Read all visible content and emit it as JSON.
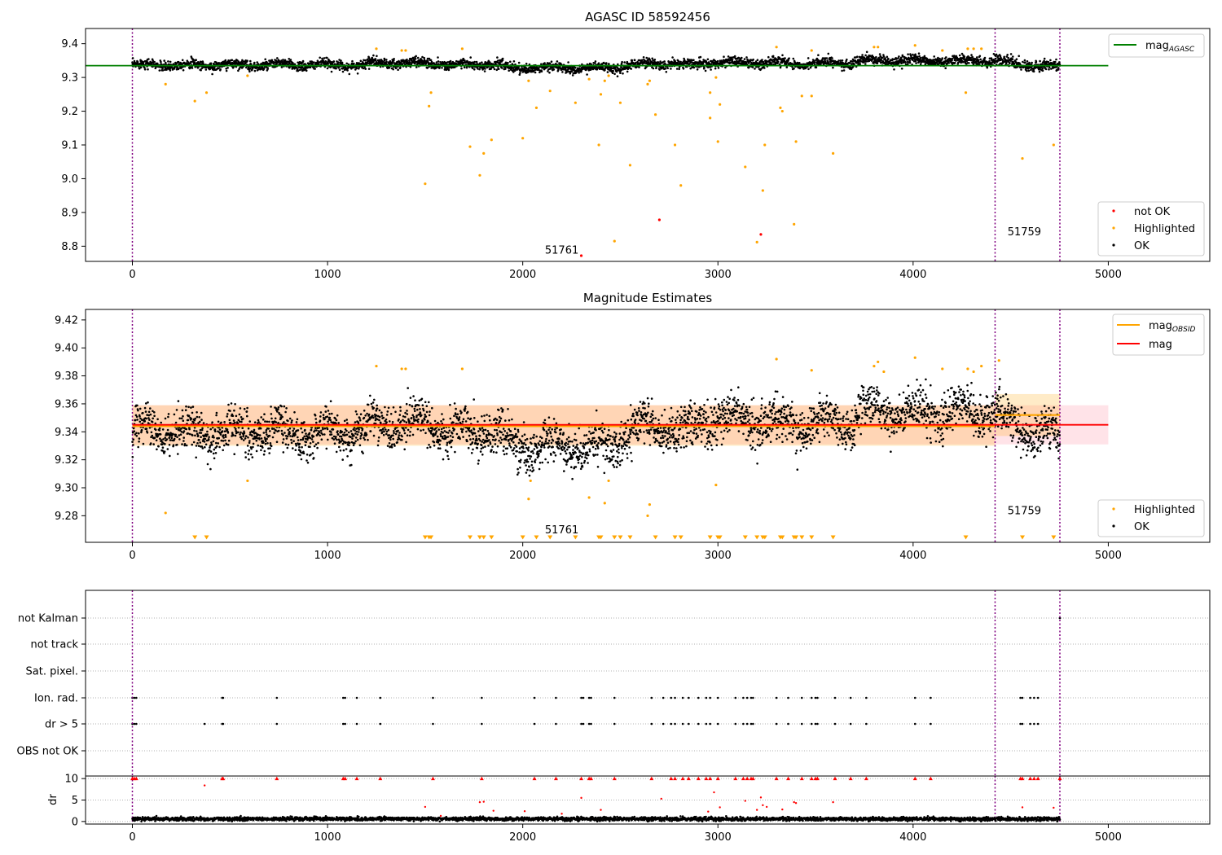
{
  "chart_data": [
    {
      "type": "scatter",
      "title": "AGASC ID 58592456",
      "xlim": [
        -240,
        5520
      ],
      "ylim": [
        8.755,
        9.445
      ],
      "xticks": [
        0,
        1000,
        2000,
        3000,
        4000,
        5000
      ],
      "yticks": [
        8.8,
        8.9,
        9.0,
        9.1,
        9.2,
        9.3,
        9.4
      ],
      "grid": false,
      "vlines": [
        0,
        4420,
        4752
      ],
      "line": {
        "name": "mag_AGASC",
        "x": [
          -240,
          5000
        ],
        "y": [
          9.335,
          9.335
        ],
        "color": "#008000"
      },
      "obsid_labels": [
        {
          "text": "51761",
          "x": 2200,
          "y": 8.778
        },
        {
          "text": "51759",
          "x": 4570,
          "y": 8.832
        }
      ],
      "band": {
        "center": 9.34,
        "amplitude": 0.012,
        "min_x": 0,
        "max_x": 4752
      },
      "highlighted": [
        [
          170,
          9.28
        ],
        [
          320,
          9.23
        ],
        [
          380,
          9.255
        ],
        [
          590,
          9.305
        ],
        [
          1250,
          9.385
        ],
        [
          1380,
          9.38
        ],
        [
          1400,
          9.38
        ],
        [
          1500,
          8.985
        ],
        [
          1520,
          9.215
        ],
        [
          1530,
          9.255
        ],
        [
          1690,
          9.385
        ],
        [
          1730,
          9.095
        ],
        [
          1780,
          9.01
        ],
        [
          1800,
          9.075
        ],
        [
          1840,
          9.115
        ],
        [
          2000,
          9.12
        ],
        [
          2030,
          9.29
        ],
        [
          2070,
          9.21
        ],
        [
          2140,
          9.26
        ],
        [
          2270,
          9.225
        ],
        [
          2340,
          9.295
        ],
        [
          2390,
          9.1
        ],
        [
          2400,
          9.25
        ],
        [
          2420,
          9.29
        ],
        [
          2440,
          9.305
        ],
        [
          2470,
          8.815
        ],
        [
          2500,
          9.225
        ],
        [
          2550,
          9.04
        ],
        [
          2640,
          9.28
        ],
        [
          2650,
          9.29
        ],
        [
          2680,
          9.19
        ],
        [
          2780,
          9.1
        ],
        [
          2810,
          8.98
        ],
        [
          2960,
          9.255
        ],
        [
          2960,
          9.18
        ],
        [
          2990,
          9.3
        ],
        [
          3000,
          9.11
        ],
        [
          3010,
          9.22
        ],
        [
          3140,
          9.035
        ],
        [
          3200,
          8.812
        ],
        [
          3230,
          8.965
        ],
        [
          3240,
          9.1
        ],
        [
          3300,
          9.39
        ],
        [
          3320,
          9.21
        ],
        [
          3330,
          9.2
        ],
        [
          3390,
          8.865
        ],
        [
          3400,
          9.11
        ],
        [
          3430,
          9.245
        ],
        [
          3480,
          9.245
        ],
        [
          3480,
          9.38
        ],
        [
          3590,
          9.075
        ],
        [
          3800,
          9.39
        ],
        [
          3820,
          9.39
        ],
        [
          4010,
          9.395
        ],
        [
          4150,
          9.38
        ],
        [
          4270,
          9.255
        ],
        [
          4280,
          9.385
        ],
        [
          4310,
          9.385
        ],
        [
          4350,
          9.385
        ],
        [
          4560,
          9.06
        ],
        [
          4720,
          9.1
        ]
      ],
      "not_ok": [
        [
          2300,
          8.772
        ],
        [
          2700,
          8.878
        ],
        [
          3220,
          8.835
        ]
      ],
      "legends": [
        {
          "position": "top-right",
          "entries": [
            {
              "label": "mag",
              "sub": "AGASC",
              "kind": "line",
              "color": "#008000"
            }
          ]
        },
        {
          "position": "bottom-right",
          "entries": [
            {
              "label": "not OK",
              "kind": "dot",
              "color": "#ff0000"
            },
            {
              "label": "Highlighted",
              "kind": "dot",
              "color": "#ffa500"
            },
            {
              "label": "OK",
              "kind": "dot",
              "color": "#000000"
            }
          ]
        }
      ]
    },
    {
      "type": "scatter",
      "title": "Magnitude Estimates",
      "xlim": [
        -240,
        5520
      ],
      "ylim": [
        9.261,
        9.4275
      ],
      "xticks": [
        0,
        1000,
        2000,
        3000,
        4000,
        5000
      ],
      "yticks": [
        9.28,
        9.3,
        9.32,
        9.34,
        9.36,
        9.38,
        9.4,
        9.42
      ],
      "grid": false,
      "vlines": [
        0,
        4420,
        4752
      ],
      "mag_line": {
        "name": "mag",
        "x": [
          -240,
          5000
        ],
        "y": 9.345,
        "color": "#ff0000",
        "band": [
          9.331,
          9.359
        ],
        "band_color": "#ffc0cb"
      },
      "obsid_segments": [
        {
          "x": [
            0,
            4420
          ],
          "y": 9.344,
          "band": [
            9.33,
            9.359
          ]
        },
        {
          "x": [
            4420,
            4752
          ],
          "y": 9.352,
          "band": [
            9.337,
            9.367
          ]
        }
      ],
      "obsid_color": "#ffa500",
      "obsid_labels": [
        {
          "text": "51761",
          "x": 2200,
          "y": 9.2675
        },
        {
          "text": "51759",
          "x": 4570,
          "y": 9.2812
        }
      ],
      "highlighted": [
        [
          170,
          9.282
        ],
        [
          590,
          9.305
        ],
        [
          1250,
          9.387
        ],
        [
          1380,
          9.385
        ],
        [
          1400,
          9.385
        ],
        [
          1690,
          9.385
        ],
        [
          2030,
          9.292
        ],
        [
          2040,
          9.305
        ],
        [
          2340,
          9.293
        ],
        [
          2420,
          9.289
        ],
        [
          2440,
          9.305
        ],
        [
          2640,
          9.28
        ],
        [
          2650,
          9.288
        ],
        [
          2990,
          9.302
        ],
        [
          3300,
          9.392
        ],
        [
          3480,
          9.384
        ],
        [
          3800,
          9.387
        ],
        [
          3820,
          9.39
        ],
        [
          3850,
          9.383
        ],
        [
          4010,
          9.393
        ],
        [
          4150,
          9.385
        ],
        [
          4280,
          9.385
        ],
        [
          4310,
          9.383
        ],
        [
          4350,
          9.387
        ],
        [
          4440,
          9.391
        ]
      ],
      "below_markers_x": [
        320,
        380,
        1500,
        1520,
        1530,
        1730,
        1780,
        1800,
        1840,
        2000,
        2070,
        2140,
        2270,
        2390,
        2400,
        2470,
        2500,
        2550,
        2680,
        2780,
        2810,
        2960,
        3000,
        3010,
        3140,
        3200,
        3230,
        3240,
        3320,
        3330,
        3390,
        3400,
        3430,
        3480,
        3590,
        4270,
        4560,
        4720
      ],
      "legends": [
        {
          "position": "top-right",
          "entries": [
            {
              "label": "mag",
              "sub": "OBSID",
              "kind": "line",
              "color": "#ffa500"
            },
            {
              "label": "mag",
              "sub": "",
              "kind": "line",
              "color": "#ff0000"
            }
          ]
        },
        {
          "position": "bottom-right",
          "entries": [
            {
              "label": "Highlighted",
              "kind": "dot",
              "color": "#ffa500"
            },
            {
              "label": "OK",
              "kind": "dot",
              "color": "#000000"
            }
          ]
        }
      ]
    },
    {
      "type": "scatter",
      "title": "",
      "xlim": [
        -240,
        5520
      ],
      "xticks": [
        0,
        1000,
        2000,
        3000,
        4000,
        5000
      ],
      "vlines": [
        0,
        4420,
        4752
      ],
      "flag_rows": [
        "not Kalman",
        "not track",
        "Sat. pixel.",
        "Ion. rad.",
        "dr > 5",
        "OBS not OK"
      ],
      "flag_events": {
        "Ion. rad.": [
          0,
          10,
          20,
          460,
          465,
          740,
          1080,
          1090,
          1150,
          1270,
          1540,
          1790,
          2060,
          2170,
          2300,
          2310,
          2340,
          2350,
          2470,
          2660,
          2720,
          2760,
          2780,
          2820,
          2850,
          2900,
          2940,
          2960,
          3000,
          3090,
          3130,
          3150,
          3170,
          3180,
          3300,
          3360,
          3430,
          3480,
          3500,
          3510,
          3600,
          3680,
          3760,
          4010,
          4090,
          4550,
          4560,
          4600,
          4620,
          4640
        ],
        "dr > 5": [
          0,
          10,
          20,
          370,
          460,
          465,
          740,
          1080,
          1090,
          1150,
          1270,
          1540,
          1790,
          2060,
          2170,
          2300,
          2310,
          2340,
          2350,
          2470,
          2660,
          2720,
          2760,
          2780,
          2820,
          2850,
          2900,
          2940,
          2960,
          3000,
          3090,
          3130,
          3150,
          3170,
          3180,
          3300,
          3360,
          3430,
          3480,
          3500,
          3510,
          3600,
          3680,
          3760,
          4010,
          4090,
          4550,
          4560,
          4600,
          4620,
          4640
        ],
        "not Kalman": [
          4752
        ]
      },
      "dr": {
        "ylabel": "dr",
        "ylim": [
          -0.6,
          10.6
        ],
        "yticks": [
          0,
          5,
          10
        ],
        "cap": 10,
        "capped_x": [
          0,
          10,
          20,
          460,
          465,
          740,
          1080,
          1090,
          1150,
          1270,
          1540,
          1790,
          2060,
          2170,
          2300,
          2340,
          2350,
          2470,
          2660,
          2760,
          2780,
          2820,
          2850,
          2900,
          2940,
          2960,
          3000,
          3090,
          3130,
          3150,
          3170,
          3180,
          3300,
          3360,
          3430,
          3480,
          3500,
          3510,
          3600,
          3680,
          3760,
          4010,
          4090,
          4550,
          4560,
          4600,
          4620,
          4640,
          4752
        ],
        "points": [
          [
            370,
            8.4
          ],
          [
            1500,
            3.4
          ],
          [
            1580,
            1.3
          ],
          [
            1780,
            4.5
          ],
          [
            1800,
            4.6
          ],
          [
            1850,
            2.5
          ],
          [
            2010,
            2.4
          ],
          [
            2200,
            1.8
          ],
          [
            2300,
            5.5
          ],
          [
            2400,
            2.7
          ],
          [
            2710,
            5.3
          ],
          [
            2950,
            2.3
          ],
          [
            2980,
            6.8
          ],
          [
            3010,
            3.3
          ],
          [
            3140,
            4.8
          ],
          [
            3200,
            2.7
          ],
          [
            3220,
            5.6
          ],
          [
            3230,
            3.8
          ],
          [
            3250,
            3.4
          ],
          [
            3330,
            2.8
          ],
          [
            3390,
            4.5
          ],
          [
            3400,
            4.3
          ],
          [
            3590,
            4.5
          ],
          [
            4560,
            3.3
          ],
          [
            4720,
            3.2
          ]
        ],
        "base_level": 0.6,
        "base_color": "#000000",
        "red_color": "#ff0000"
      }
    }
  ]
}
